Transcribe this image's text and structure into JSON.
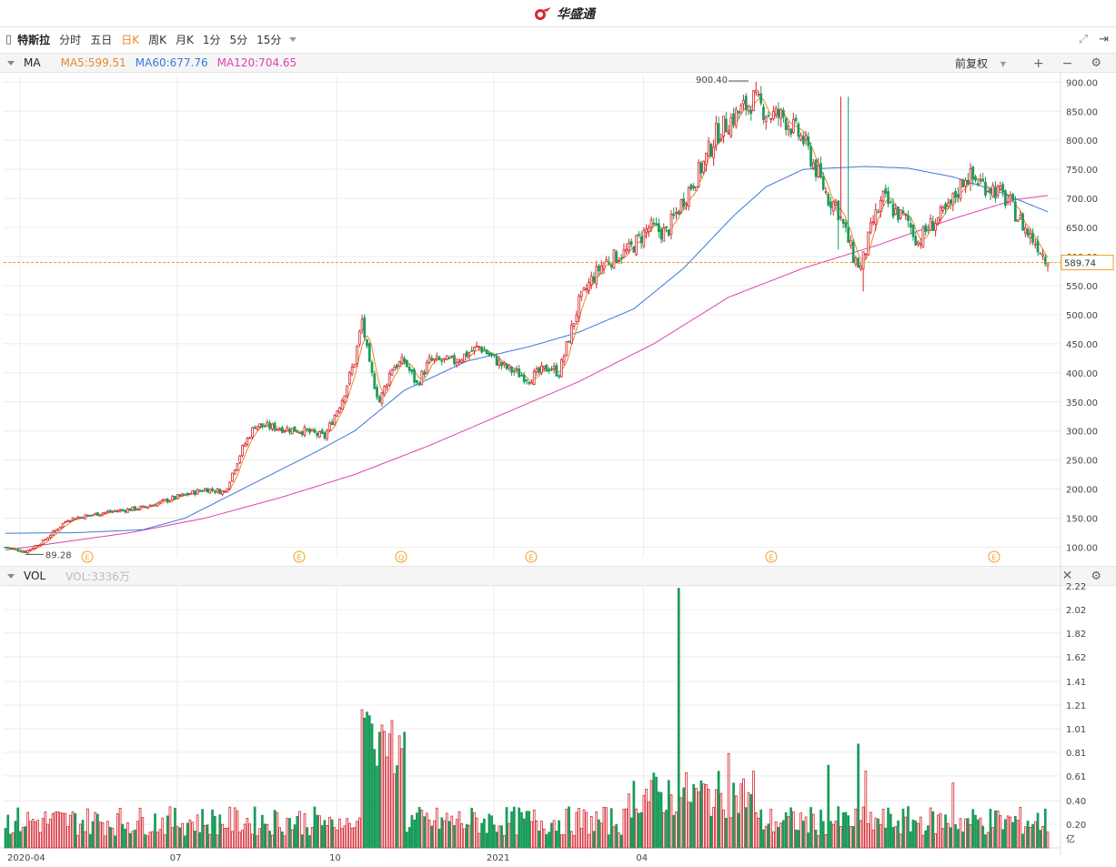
{
  "brand": {
    "name": "华盛通"
  },
  "toolbar": {
    "stock_name": "特斯拉",
    "periods": [
      "分时",
      "五日",
      "日K",
      "周K",
      "月K",
      "1分",
      "5分",
      "15分"
    ],
    "active_period": "日K"
  },
  "ma_bar": {
    "label": "MA",
    "ma5": "MA5:599.51",
    "ma60": "MA60:677.76",
    "ma120": "MA120:704.65",
    "adjust": "前复权",
    "colors": {
      "ma5": "#e8892a",
      "ma60": "#3b78d8",
      "ma120": "#e040b0"
    }
  },
  "vol_bar": {
    "label": "VOL",
    "value": "VOL:3336万"
  },
  "chart_data": [
    {
      "type": "candlestick",
      "title": "",
      "y_ticks": [
        "900.00",
        "850.00",
        "800.00",
        "750.00",
        "700.00",
        "650.00",
        "600.00",
        "550.00",
        "500.00",
        "450.00",
        "400.00",
        "350.00",
        "300.00",
        "250.00",
        "200.00",
        "150.00",
        "100.00"
      ],
      "ylim": [
        82,
        913
      ],
      "x_labels": [
        "2020-04",
        "07",
        "10",
        "2021",
        "04"
      ],
      "high_marker": "900.40",
      "low_marker": "89.28",
      "last_price": "589.74",
      "last_value": 589.74,
      "event_markers": [
        "E",
        "E",
        "Q",
        "E",
        "E",
        "E"
      ],
      "colors": {
        "up": "#d5262f",
        "down": "#1a9c5a",
        "last_line": "#f0a020"
      },
      "anchors": [
        [
          0,
          100
        ],
        [
          8,
          92
        ],
        [
          15,
          110
        ],
        [
          25,
          148
        ],
        [
          40,
          160
        ],
        [
          55,
          168
        ],
        [
          68,
          185
        ],
        [
          80,
          200
        ],
        [
          88,
          195
        ],
        [
          95,
          270
        ],
        [
          100,
          310
        ],
        [
          110,
          305
        ],
        [
          120,
          300
        ],
        [
          128,
          290
        ],
        [
          135,
          355
        ],
        [
          140,
          420
        ],
        [
          143,
          490
        ],
        [
          146,
          410
        ],
        [
          150,
          350
        ],
        [
          155,
          410
        ],
        [
          160,
          420
        ],
        [
          165,
          380
        ],
        [
          170,
          420
        ],
        [
          180,
          420
        ],
        [
          190,
          445
        ],
        [
          200,
          410
        ],
        [
          210,
          390
        ],
        [
          218,
          410
        ],
        [
          222,
          400
        ],
        [
          230,
          520
        ],
        [
          235,
          560
        ],
        [
          240,
          590
        ],
        [
          250,
          610
        ],
        [
          258,
          650
        ],
        [
          265,
          640
        ],
        [
          272,
          700
        ],
        [
          280,
          760
        ],
        [
          285,
          810
        ],
        [
          292,
          840
        ],
        [
          300,
          870
        ],
        [
          306,
          845
        ],
        [
          312,
          840
        ],
        [
          320,
          800
        ],
        [
          325,
          750
        ],
        [
          330,
          700
        ],
        [
          333,
          690
        ],
        [
          337,
          640
        ],
        [
          340,
          600
        ],
        [
          343,
          580
        ],
        [
          348,
          660
        ],
        [
          352,
          700
        ],
        [
          356,
          680
        ],
        [
          362,
          660
        ],
        [
          366,
          625
        ],
        [
          370,
          650
        ],
        [
          378,
          680
        ],
        [
          385,
          740
        ],
        [
          392,
          725
        ],
        [
          397,
          715
        ],
        [
          403,
          690
        ],
        [
          410,
          640
        ],
        [
          414,
          620
        ],
        [
          418,
          590
        ]
      ],
      "ma60_anchors": [
        [
          0,
          124
        ],
        [
          28,
          125
        ],
        [
          55,
          130
        ],
        [
          72,
          150
        ],
        [
          95,
          200
        ],
        [
          125,
          265
        ],
        [
          140,
          300
        ],
        [
          160,
          370
        ],
        [
          185,
          420
        ],
        [
          210,
          445
        ],
        [
          230,
          470
        ],
        [
          252,
          510
        ],
        [
          272,
          580
        ],
        [
          292,
          670
        ],
        [
          305,
          720
        ],
        [
          320,
          750
        ],
        [
          345,
          755
        ],
        [
          362,
          752
        ],
        [
          380,
          737
        ],
        [
          398,
          712
        ],
        [
          418,
          677
        ]
      ],
      "ma120_anchors": [
        [
          0,
          95
        ],
        [
          50,
          125
        ],
        [
          80,
          150
        ],
        [
          110,
          185
        ],
        [
          140,
          225
        ],
        [
          170,
          275
        ],
        [
          200,
          330
        ],
        [
          230,
          385
        ],
        [
          260,
          450
        ],
        [
          290,
          530
        ],
        [
          320,
          580
        ],
        [
          350,
          620
        ],
        [
          380,
          665
        ],
        [
          405,
          698
        ],
        [
          418,
          705
        ]
      ],
      "total_bars": 419
    },
    {
      "type": "bar",
      "title": "",
      "y_ticks": [
        "2.22",
        "2.02",
        "1.82",
        "1.62",
        "1.41",
        "1.21",
        "1.01",
        "0.81",
        "0.61",
        "0.40",
        "0.20",
        "亿"
      ],
      "ylim": [
        0,
        2.22
      ],
      "unit": "亿",
      "spikes": {
        "143": 1.17,
        "144": 1.1,
        "145": 1.15,
        "146": 1.12,
        "147": 1.05,
        "150": 0.98,
        "155": 1.08,
        "160": 0.98,
        "270": 2.2,
        "290": 0.8,
        "300": 0.65,
        "330": 0.7,
        "342": 0.88,
        "345": 0.65,
        "380": 0.55
      }
    }
  ]
}
